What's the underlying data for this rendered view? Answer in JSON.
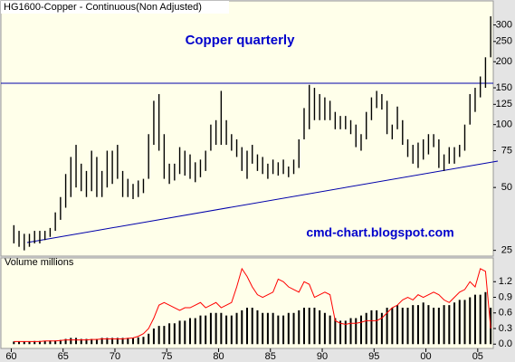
{
  "chart_data": [
    {
      "type": "hilo",
      "title": "HG1600-Copper - Continuous(Non Adjusted)",
      "subtitle": "Copper quarterly",
      "annotation": "cmd-chart.blogspot.com",
      "log_scale": true,
      "color": "#000000",
      "x": [
        1960.25,
        1960.75,
        1961.25,
        1961.75,
        1962.25,
        1962.75,
        1963.25,
        1963.75,
        1964.25,
        1964.75,
        1965.25,
        1965.75,
        1966.25,
        1966.75,
        1967.25,
        1967.75,
        1968.25,
        1968.75,
        1969.25,
        1969.75,
        1970.25,
        1970.75,
        1971.25,
        1971.75,
        1972.25,
        1972.75,
        1973.25,
        1973.75,
        1974.25,
        1974.75,
        1975.25,
        1975.75,
        1976.25,
        1976.75,
        1977.25,
        1977.75,
        1978.25,
        1978.75,
        1979.25,
        1979.75,
        1980.25,
        1980.75,
        1981.25,
        1981.75,
        1982.25,
        1982.75,
        1983.25,
        1983.75,
        1984.25,
        1984.75,
        1985.25,
        1985.75,
        1986.25,
        1986.75,
        1987.25,
        1987.75,
        1988.25,
        1988.75,
        1989.25,
        1989.75,
        1990.25,
        1990.75,
        1991.25,
        1991.75,
        1992.25,
        1992.75,
        1993.25,
        1993.75,
        1994.25,
        1994.75,
        1995.25,
        1995.75,
        1996.25,
        1996.75,
        1997.25,
        1997.75,
        1998.25,
        1998.75,
        1999.25,
        1999.75,
        2000.25,
        2000.75,
        2001.25,
        2001.75,
        2002.25,
        2002.75,
        2003.25,
        2003.75,
        2004.25,
        2004.75,
        2005.25,
        2005.75,
        2006.25
      ],
      "high": [
        33,
        31,
        30,
        30,
        31,
        31,
        31,
        32,
        38,
        45,
        58,
        70,
        80,
        65,
        60,
        75,
        70,
        60,
        75,
        75,
        80,
        60,
        55,
        52,
        54,
        55,
        90,
        130,
        140,
        90,
        65,
        65,
        78,
        75,
        72,
        66,
        68,
        75,
        100,
        105,
        145,
        105,
        90,
        85,
        78,
        75,
        80,
        72,
        70,
        65,
        68,
        66,
        68,
        63,
        68,
        85,
        120,
        155,
        150,
        140,
        135,
        130,
        115,
        110,
        110,
        105,
        100,
        90,
        115,
        135,
        145,
        140,
        130,
        100,
        122,
        105,
        85,
        80,
        82,
        85,
        90,
        90,
        85,
        72,
        78,
        78,
        80,
        100,
        140,
        150,
        170,
        210,
        330
      ],
      "low": [
        27,
        26,
        25,
        26,
        27,
        27,
        28,
        29,
        31,
        35,
        40,
        45,
        50,
        48,
        45,
        48,
        45,
        45,
        50,
        52,
        55,
        45,
        45,
        44,
        45,
        47,
        55,
        80,
        75,
        55,
        52,
        54,
        58,
        57,
        55,
        53,
        56,
        60,
        75,
        80,
        80,
        80,
        75,
        70,
        60,
        55,
        65,
        60,
        58,
        55,
        58,
        57,
        58,
        56,
        58,
        62,
        85,
        95,
        105,
        105,
        105,
        105,
        95,
        95,
        95,
        90,
        78,
        75,
        85,
        105,
        120,
        118,
        90,
        85,
        95,
        80,
        70,
        65,
        62,
        68,
        72,
        78,
        62,
        60,
        65,
        65,
        70,
        75,
        100,
        115,
        135,
        150,
        210
      ],
      "xlim": [
        1959,
        2006.5
      ],
      "ylim": [
        23,
        330
      ],
      "xticks": [
        {
          "value": 1960,
          "label": "60"
        },
        {
          "value": 1965,
          "label": "65"
        },
        {
          "value": 1970,
          "label": "70"
        },
        {
          "value": 1975,
          "label": "75"
        },
        {
          "value": 1980,
          "label": "80"
        },
        {
          "value": 1985,
          "label": "85"
        },
        {
          "value": 1990,
          "label": "90"
        },
        {
          "value": 1995,
          "label": "95"
        },
        {
          "value": 2000,
          "label": "00"
        },
        {
          "value": 2005,
          "label": "05"
        }
      ],
      "yticks": [
        25,
        50,
        75,
        100,
        125,
        150,
        200,
        250,
        300
      ]
    },
    {
      "type": "bar",
      "title": "Volume  millions",
      "series": [
        {
          "type": "bar",
          "color": "#000000",
          "values": [
            0.05,
            0.05,
            0.05,
            0.05,
            0.06,
            0.06,
            0.06,
            0.07,
            0.07,
            0.08,
            0.1,
            0.12,
            0.12,
            0.1,
            0.1,
            0.1,
            0.1,
            0.12,
            0.12,
            0.12,
            0.12,
            0.12,
            0.12,
            0.12,
            0.13,
            0.14,
            0.2,
            0.3,
            0.35,
            0.35,
            0.4,
            0.4,
            0.45,
            0.45,
            0.5,
            0.5,
            0.55,
            0.55,
            0.6,
            0.6,
            0.6,
            0.55,
            0.55,
            0.6,
            0.65,
            0.7,
            0.7,
            0.65,
            0.6,
            0.6,
            0.6,
            0.55,
            0.55,
            0.6,
            0.6,
            0.65,
            0.7,
            0.7,
            0.7,
            0.65,
            0.6,
            0.55,
            0.5,
            0.45,
            0.45,
            0.5,
            0.5,
            0.55,
            0.6,
            0.65,
            0.65,
            0.6,
            0.7,
            0.7,
            0.75,
            0.7,
            0.7,
            0.75,
            0.75,
            0.8,
            0.75,
            0.7,
            0.7,
            0.75,
            0.75,
            0.8,
            0.85,
            0.85,
            0.9,
            0.95,
            0.95,
            1.0,
            0.7
          ]
        },
        {
          "type": "line",
          "color": "#ff0000",
          "values": [
            0.05,
            0.05,
            0.05,
            0.05,
            0.05,
            0.05,
            0.06,
            0.06,
            0.06,
            0.07,
            0.08,
            0.08,
            0.08,
            0.08,
            0.08,
            0.09,
            0.09,
            0.1,
            0.1,
            0.1,
            0.1,
            0.1,
            0.11,
            0.12,
            0.15,
            0.2,
            0.3,
            0.5,
            0.75,
            0.8,
            0.75,
            0.7,
            0.65,
            0.7,
            0.7,
            0.75,
            0.8,
            0.7,
            0.75,
            0.8,
            0.7,
            0.75,
            0.8,
            1.1,
            1.45,
            1.3,
            1.1,
            0.95,
            0.9,
            0.95,
            1.0,
            1.25,
            1.2,
            1.1,
            1.05,
            1.0,
            1.2,
            1.15,
            0.9,
            0.95,
            1.0,
            0.95,
            0.45,
            0.4,
            0.38,
            0.4,
            0.4,
            0.42,
            0.45,
            0.45,
            0.45,
            0.5,
            0.6,
            0.7,
            0.75,
            0.85,
            0.9,
            0.85,
            0.95,
            0.9,
            0.95,
            1.0,
            0.95,
            0.85,
            0.8,
            0.9,
            1.0,
            1.05,
            1.2,
            1.1,
            1.45,
            1.4,
            0.3
          ]
        }
      ],
      "ylim": [
        -0.1,
        1.57
      ],
      "yticks": [
        {
          "value": 0,
          "label": "0.0"
        },
        0.3,
        0.6,
        0.9,
        1.2
      ]
    }
  ]
}
